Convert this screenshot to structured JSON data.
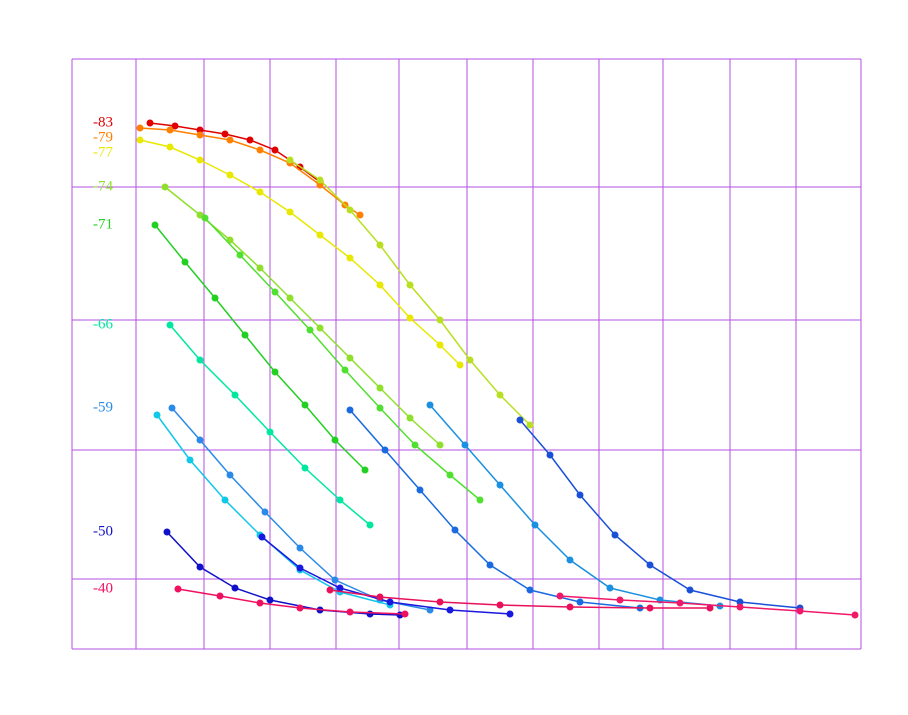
{
  "chart_data": {
    "type": "line",
    "xlim": [
      0,
      789
    ],
    "xticks": [
      0,
      64,
      132,
      198,
      264,
      327,
      395,
      461,
      527,
      591,
      658,
      724,
      789
    ],
    "ylim": [
      0,
      590
    ],
    "yticks": [
      0,
      70,
      199,
      329,
      462,
      590
    ],
    "grid": true,
    "markers": true,
    "series": [
      {
        "name": "-83",
        "color": "#e00000",
        "x": [
          78,
          103,
          128,
          153,
          178,
          203,
          228,
          248
        ],
        "values": [
          526,
          523,
          519,
          515,
          509,
          499,
          482,
          467
        ]
      },
      {
        "name": "-79",
        "color": "#ff8000",
        "x": [
          68,
          98,
          128,
          158,
          188,
          218,
          248,
          273,
          288
        ],
        "values": [
          521,
          519,
          514,
          509,
          499,
          486,
          464,
          444,
          434
        ]
      },
      {
        "name": "-77",
        "color": "#e8e800",
        "x": [
          68,
          98,
          128,
          158,
          188,
          218,
          248,
          278,
          308,
          338,
          368,
          388
        ],
        "values": [
          509,
          502,
          489,
          474,
          457,
          437,
          414,
          391,
          364,
          331,
          304,
          284
        ]
      },
      {
        "name": "-74",
        "color": "#8ee02a",
        "x": [
          93,
          128,
          158,
          188,
          218,
          248,
          278,
          308,
          338,
          368
        ],
        "values": [
          462,
          434,
          409,
          381,
          351,
          321,
          291,
          261,
          231,
          204
        ]
      },
      {
        "color": "#b8e020",
        "x": [
          218,
          248,
          278,
          308,
          338,
          368,
          398,
          428,
          458
        ],
        "values": [
          489,
          469,
          439,
          404,
          364,
          329,
          289,
          254,
          224
        ]
      },
      {
        "name": "-71",
        "color": "#22d022",
        "x": [
          83,
          113,
          143,
          173,
          203,
          233,
          263,
          293
        ],
        "values": [
          424,
          387,
          351,
          314,
          277,
          244,
          209,
          179
        ]
      },
      {
        "color": "#50e030",
        "x": [
          133,
          168,
          203,
          238,
          273,
          308,
          343,
          378,
          408
        ],
        "values": [
          431,
          394,
          357,
          319,
          279,
          241,
          204,
          174,
          149
        ]
      },
      {
        "name": "-66",
        "color": "#00e8a0",
        "x": [
          98,
          128,
          163,
          198,
          233,
          268,
          298
        ],
        "values": [
          324,
          289,
          254,
          217,
          181,
          149,
          124
        ]
      },
      {
        "name": "-59",
        "color": "#2a8ae8",
        "x": [
          100,
          128,
          158,
          193,
          228,
          263,
          308,
          358
        ],
        "values": [
          241,
          209,
          174,
          137,
          101,
          69,
          49,
          39
        ]
      },
      {
        "color": "#10c8e8",
        "x": [
          85,
          118,
          153,
          188,
          228,
          268,
          318
        ],
        "values": [
          234,
          189,
          149,
          114,
          79,
          57,
          44
        ]
      },
      {
        "color": "#1a6ae0",
        "x": [
          278,
          313,
          348,
          383,
          418,
          458,
          508,
          568
        ],
        "values": [
          239,
          199,
          159,
          119,
          84,
          59,
          47,
          41
        ]
      },
      {
        "color": "#1a90e0",
        "x": [
          358,
          393,
          428,
          463,
          498,
          538,
          588,
          648
        ],
        "values": [
          244,
          204,
          164,
          124,
          89,
          61,
          49,
          43
        ]
      },
      {
        "color": "#1a50d8",
        "x": [
          448,
          478,
          508,
          543,
          578,
          618,
          668,
          728
        ],
        "values": [
          229,
          194,
          154,
          114,
          84,
          59,
          47,
          41
        ]
      },
      {
        "name": "-50",
        "color": "#1010c8",
        "x": [
          95,
          128,
          163,
          198,
          248,
          298,
          328
        ],
        "values": [
          117,
          82,
          61,
          49,
          39,
          35,
          34
        ]
      },
      {
        "color": "#1818e0",
        "x": [
          190,
          228,
          268,
          318,
          378,
          438
        ],
        "values": [
          112,
          81,
          61,
          47,
          39,
          35
        ]
      },
      {
        "name": "-40",
        "color": "#f01060",
        "x": [
          106,
          148,
          188,
          228,
          278,
          333
        ],
        "values": [
          60,
          53,
          46,
          41,
          37,
          35
        ]
      },
      {
        "color": "#e8105a",
        "x": [
          258,
          308,
          368,
          428,
          498,
          578,
          638
        ],
        "values": [
          59,
          52,
          47,
          44,
          42,
          41,
          41
        ]
      },
      {
        "color": "#f01868",
        "x": [
          488,
          548,
          608,
          668,
          728,
          783
        ],
        "values": [
          53,
          49,
          46,
          42,
          38,
          34
        ]
      }
    ]
  }
}
